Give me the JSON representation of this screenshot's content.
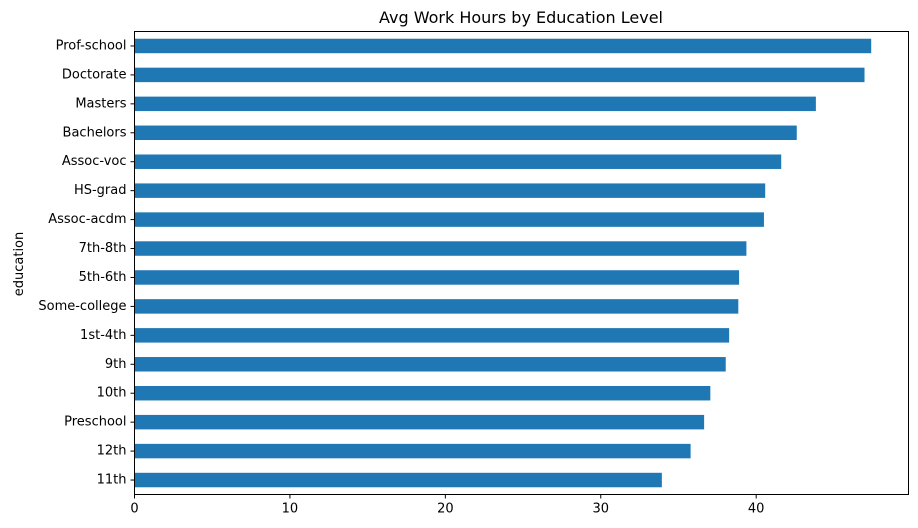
{
  "chart_data": {
    "type": "bar",
    "orientation": "horizontal",
    "title": "Avg Work Hours by Education Level",
    "xlabel": "",
    "ylabel": "education",
    "categories": [
      "Prof-school",
      "Doctorate",
      "Masters",
      "Bachelors",
      "Assoc-voc",
      "HS-grad",
      "Assoc-acdm",
      "7th-8th",
      "5th-6th",
      "Some-college",
      "1st-4th",
      "9th",
      "10th",
      "Preschool",
      "12th",
      "11th"
    ],
    "values": [
      47.4,
      46.97,
      43.84,
      42.61,
      41.61,
      40.58,
      40.5,
      39.37,
      38.9,
      38.85,
      38.26,
      38.04,
      37.05,
      36.65,
      35.78,
      33.93
    ],
    "xlim": [
      0,
      49.8
    ],
    "xticks": [
      0,
      10,
      20,
      30,
      40
    ],
    "bar_color": "#1f77b4",
    "grid": false,
    "legend": "none"
  }
}
